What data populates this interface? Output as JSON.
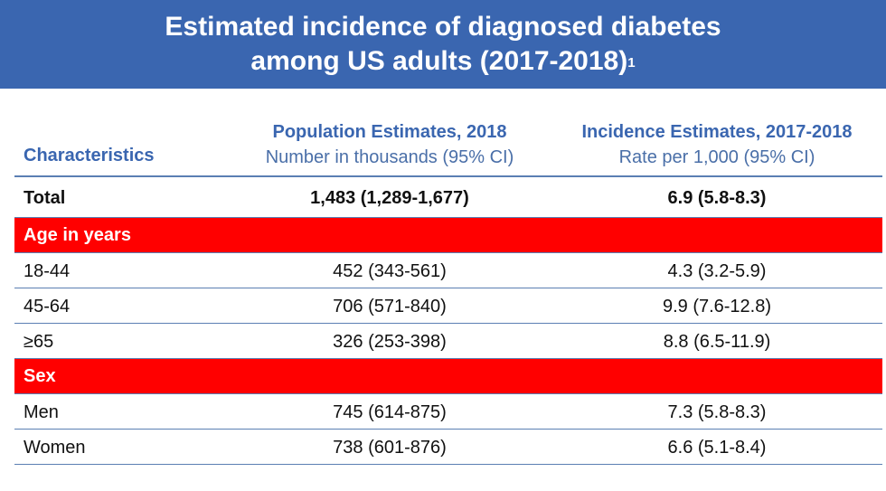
{
  "title": {
    "line1": "Estimated incidence of diagnosed diabetes",
    "line2": "among US adults (2017-2018)",
    "footnote_marker": "1"
  },
  "table": {
    "headers": {
      "characteristics": "Characteristics",
      "population_title": "Population Estimates, 2018",
      "population_sub": "Number in thousands (95% CI)",
      "incidence_title": "Incidence Estimates, 2017-2018",
      "incidence_sub": "Rate per 1,000 (95% CI)"
    },
    "total": {
      "label": "Total",
      "population": "1,483 (1,289-1,677)",
      "incidence": "6.9 (5.8-8.3)"
    },
    "sections": [
      {
        "label": "Age in years",
        "rows": [
          {
            "label": "18-44",
            "population": "452 (343-561)",
            "incidence": "4.3 (3.2-5.9)"
          },
          {
            "label": "45-64",
            "population": "706 (571-840)",
            "incidence": "9.9 (7.6-12.8)"
          },
          {
            "label": "≥65",
            "population": "326 (253-398)",
            "incidence": "8.8 (6.5-11.9)"
          }
        ]
      },
      {
        "label": "Sex",
        "rows": [
          {
            "label": "Men",
            "population": "745 (614-875)",
            "incidence": "7.3 (5.8-8.3)"
          },
          {
            "label": "Women",
            "population": "738 (601-876)",
            "incidence": "6.6 (5.1-8.4)"
          }
        ]
      }
    ]
  },
  "colors": {
    "title_bg": "#3a66b0",
    "header_text": "#3a66b0",
    "section_bg": "#ff0000",
    "rule": "#5b7fb3"
  }
}
